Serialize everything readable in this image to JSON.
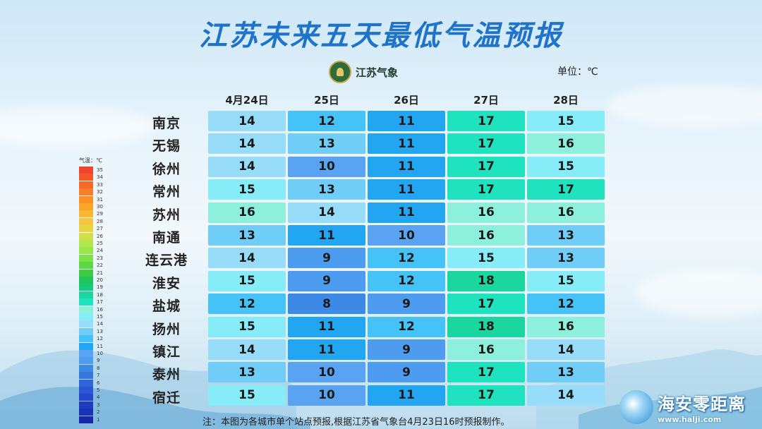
{
  "title": "江苏未来五天最低气温预报",
  "logo_text": "江苏气象",
  "unit_label": "单位：℃",
  "dates": [
    "4月24日",
    "25日",
    "26日",
    "27日",
    "28日"
  ],
  "cities": [
    {
      "name": "南京",
      "values": [
        14,
        12,
        11,
        17,
        15
      ]
    },
    {
      "name": "无锡",
      "values": [
        14,
        13,
        11,
        17,
        16
      ]
    },
    {
      "name": "徐州",
      "values": [
        14,
        10,
        11,
        17,
        15
      ]
    },
    {
      "name": "常州",
      "values": [
        15,
        13,
        11,
        17,
        17
      ]
    },
    {
      "name": "苏州",
      "values": [
        16,
        14,
        11,
        16,
        16
      ]
    },
    {
      "name": "南通",
      "values": [
        13,
        11,
        10,
        16,
        13
      ]
    },
    {
      "name": "连云港",
      "values": [
        14,
        9,
        12,
        15,
        13
      ]
    },
    {
      "name": "淮安",
      "values": [
        15,
        9,
        12,
        18,
        15
      ]
    },
    {
      "name": "盐城",
      "values": [
        12,
        8,
        9,
        17,
        12
      ]
    },
    {
      "name": "扬州",
      "values": [
        15,
        11,
        12,
        18,
        16
      ]
    },
    {
      "name": "镇江",
      "values": [
        14,
        11,
        9,
        16,
        14
      ]
    },
    {
      "name": "泰州",
      "values": [
        13,
        10,
        9,
        17,
        13
      ]
    },
    {
      "name": "宿迁",
      "values": [
        15,
        10,
        11,
        17,
        14
      ]
    }
  ],
  "temp_colors": {
    "8": "#3d8ae6",
    "9": "#4e9cf0",
    "10": "#5aa2f2",
    "11": "#22a6f2",
    "12": "#45c2f7",
    "13": "#6fcdf7",
    "14": "#97ddf9",
    "15": "#86ecf7",
    "16": "#8cf0dc",
    "17": "#1fe3bf",
    "18": "#1bd69f"
  },
  "legend": {
    "title": "气温：℃",
    "labels": [
      "35",
      "34",
      "33",
      "32",
      "31",
      "30",
      "29",
      "28",
      "27",
      "26",
      "25",
      "24",
      "23",
      "22",
      "21",
      "20",
      "19",
      "18",
      "17",
      "16",
      "15",
      "14",
      "13",
      "12",
      "11",
      "10",
      "9",
      "8",
      "7",
      "6",
      "5",
      "4",
      "3",
      "2",
      "1"
    ],
    "colors": [
      "#f0442d",
      "#f4562a",
      "#f66a28",
      "#f77e27",
      "#f99127",
      "#fba42a",
      "#fcb533",
      "#f6c640",
      "#e7d443",
      "#cfe04a",
      "#b6e64e",
      "#98e64c",
      "#7de148",
      "#5ed744",
      "#3ecb42",
      "#1fc45a",
      "#17c97a",
      "#1bd69f",
      "#1fe3bf",
      "#8cf0dc",
      "#86ecf7",
      "#97ddf9",
      "#6fcdf7",
      "#45c2f7",
      "#22a6f2",
      "#5aa2f2",
      "#4e9cf0",
      "#3d8ae6",
      "#3578e0",
      "#2f66db",
      "#2957d3",
      "#2448c9",
      "#1f3cc0",
      "#1b32b5",
      "#1828aa"
    ]
  },
  "note": "注：本图为各城市单个站点预报,根据江苏省气象台4月23日16时预报制作。",
  "watermark": {
    "name": "海安零距离",
    "url": "www.halji.com"
  }
}
